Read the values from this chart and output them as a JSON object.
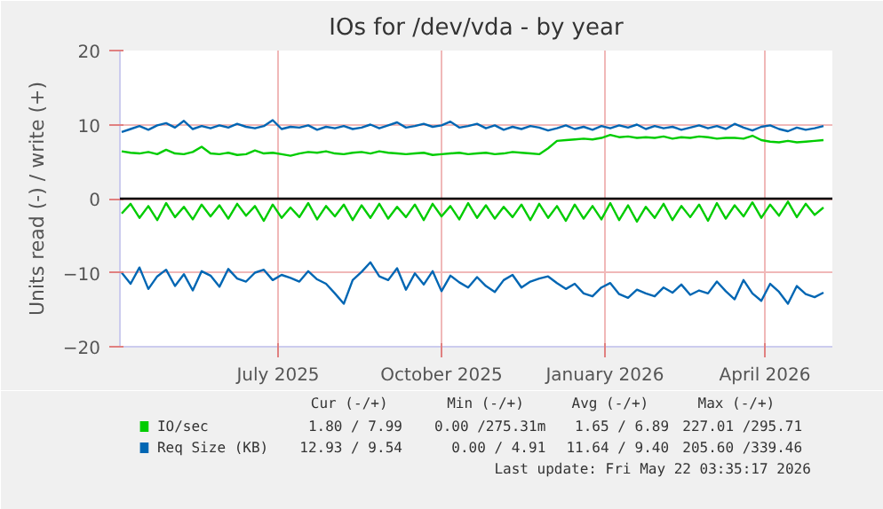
{
  "chart_data": {
    "type": "line",
    "title": "IOs for /dev/vda - by year",
    "ylabel": "Units read (-) / write (+)",
    "x": [
      "2025-04-19",
      "2025-04-24",
      "2025-04-29",
      "2025-05-04",
      "2025-05-09",
      "2025-05-14",
      "2025-05-19",
      "2025-05-24",
      "2025-05-29",
      "2025-06-03",
      "2025-06-08",
      "2025-06-13",
      "2025-06-18",
      "2025-06-23",
      "2025-06-28",
      "2025-07-03",
      "2025-07-08",
      "2025-07-13",
      "2025-07-18",
      "2025-07-23",
      "2025-07-28",
      "2025-08-02",
      "2025-08-07",
      "2025-08-12",
      "2025-08-17",
      "2025-08-22",
      "2025-08-27",
      "2025-09-01",
      "2025-09-06",
      "2025-09-11",
      "2025-09-16",
      "2025-09-21",
      "2025-09-26",
      "2025-10-01",
      "2025-10-06",
      "2025-10-11",
      "2025-10-16",
      "2025-10-21",
      "2025-10-26",
      "2025-10-31",
      "2025-11-05",
      "2025-11-10",
      "2025-11-15",
      "2025-11-20",
      "2025-11-25",
      "2025-11-30",
      "2025-12-05",
      "2025-12-10",
      "2025-12-15",
      "2025-12-20",
      "2025-12-25",
      "2025-12-30",
      "2026-01-04",
      "2026-01-09",
      "2026-01-14",
      "2026-01-19",
      "2026-01-24",
      "2026-01-29",
      "2026-02-03",
      "2026-02-08",
      "2026-02-13",
      "2026-02-18",
      "2026-02-23",
      "2026-02-28",
      "2026-03-05",
      "2026-03-10",
      "2026-03-15",
      "2026-03-20",
      "2026-03-25",
      "2026-03-30",
      "2026-04-04",
      "2026-04-09",
      "2026-04-14",
      "2026-04-19",
      "2026-04-24",
      "2026-04-29",
      "2026-05-04",
      "2026-05-09",
      "2026-05-14",
      "2026-05-19"
    ],
    "series": [
      {
        "name": "IO/sec",
        "color": "#00cc00",
        "values": [
          6.4,
          6.2,
          6.1,
          6.3,
          6.0,
          6.6,
          6.1,
          6.0,
          6.3,
          7.0,
          6.1,
          6.0,
          6.2,
          5.9,
          6.0,
          6.5,
          6.1,
          6.2,
          6.0,
          5.8,
          6.1,
          6.3,
          6.2,
          6.4,
          6.1,
          6.0,
          6.2,
          6.3,
          6.1,
          6.4,
          6.2,
          6.1,
          6.0,
          6.1,
          6.2,
          5.9,
          6.0,
          6.1,
          6.2,
          6.0,
          6.1,
          6.2,
          6.0,
          6.1,
          6.3,
          6.2,
          6.1,
          6.0,
          6.8,
          7.8,
          7.9,
          8.0,
          8.1,
          8.0,
          8.2,
          8.6,
          8.3,
          8.4,
          8.2,
          8.3,
          8.2,
          8.4,
          8.1,
          8.3,
          8.2,
          8.4,
          8.3,
          8.1,
          8.2,
          8.2,
          8.1,
          8.5,
          7.9,
          7.7,
          7.6,
          7.8,
          7.6,
          7.7,
          7.8,
          7.9
        ]
      },
      {
        "color": "#00cc00",
        "values": [
          -2.0,
          -0.7,
          -2.6,
          -1.0,
          -2.9,
          -0.6,
          -2.5,
          -1.1,
          -2.8,
          -0.8,
          -2.4,
          -0.9,
          -2.7,
          -0.7,
          -2.3,
          -1.0,
          -3.0,
          -0.8,
          -2.6,
          -1.2,
          -2.5,
          -0.6,
          -2.8,
          -1.0,
          -2.4,
          -0.8,
          -2.9,
          -0.9,
          -2.6,
          -0.7,
          -2.7,
          -1.1,
          -2.5,
          -0.8,
          -2.9,
          -0.7,
          -2.4,
          -1.0,
          -2.8,
          -0.6,
          -2.6,
          -0.9,
          -2.7,
          -1.1,
          -2.5,
          -0.8,
          -2.9,
          -0.7,
          -2.6,
          -1.0,
          -3.0,
          -0.8,
          -2.7,
          -1.0,
          -2.8,
          -0.6,
          -2.9,
          -0.9,
          -3.1,
          -1.1,
          -2.6,
          -0.7,
          -2.9,
          -1.0,
          -2.5,
          -0.8,
          -3.0,
          -0.6,
          -2.7,
          -0.9,
          -2.4,
          -0.5,
          -2.6,
          -0.8,
          -2.3,
          -0.4,
          -2.5,
          -0.7,
          -2.2,
          -1.2
        ]
      },
      {
        "name": "Req Size (KB)",
        "color": "#0066b3",
        "values": [
          9.0,
          9.4,
          9.8,
          9.3,
          9.9,
          10.2,
          9.6,
          10.5,
          9.4,
          9.8,
          9.5,
          9.9,
          9.6,
          10.1,
          9.7,
          9.5,
          9.8,
          10.6,
          9.4,
          9.7,
          9.6,
          9.9,
          9.3,
          9.7,
          9.5,
          9.8,
          9.4,
          9.6,
          10.0,
          9.5,
          9.9,
          10.3,
          9.6,
          9.8,
          10.1,
          9.7,
          9.9,
          10.4,
          9.6,
          9.8,
          10.1,
          9.5,
          9.9,
          9.3,
          9.7,
          9.4,
          9.8,
          9.6,
          9.2,
          9.5,
          9.9,
          9.4,
          9.7,
          9.3,
          9.8,
          9.5,
          9.9,
          9.6,
          10.0,
          9.4,
          9.8,
          9.5,
          9.7,
          9.3,
          9.6,
          9.9,
          9.5,
          9.8,
          9.4,
          10.1,
          9.6,
          9.2,
          9.7,
          9.9,
          9.4,
          9.1,
          9.6,
          9.3,
          9.5,
          9.8
        ]
      },
      {
        "color": "#0066b3",
        "values": [
          -10.0,
          -11.5,
          -9.3,
          -12.2,
          -10.5,
          -9.6,
          -11.8,
          -10.2,
          -12.4,
          -9.8,
          -10.4,
          -11.9,
          -9.5,
          -10.8,
          -11.2,
          -10.0,
          -9.6,
          -11.0,
          -10.3,
          -10.7,
          -11.2,
          -9.8,
          -10.9,
          -11.5,
          -12.8,
          -14.2,
          -11.0,
          -9.9,
          -8.6,
          -10.5,
          -11.0,
          -9.4,
          -12.3,
          -10.1,
          -11.6,
          -9.8,
          -12.5,
          -10.4,
          -11.3,
          -12.0,
          -10.6,
          -11.8,
          -12.6,
          -11.0,
          -10.3,
          -12.0,
          -11.2,
          -10.8,
          -10.5,
          -11.4,
          -12.2,
          -11.5,
          -12.8,
          -13.2,
          -12.0,
          -11.4,
          -12.9,
          -13.4,
          -12.3,
          -12.8,
          -13.2,
          -12.0,
          -12.7,
          -11.6,
          -13.0,
          -12.4,
          -12.8,
          -11.2,
          -12.5,
          -13.6,
          -11.0,
          -12.8,
          -13.8,
          -11.5,
          -12.6,
          -14.2,
          -11.8,
          -12.9,
          -13.3,
          -12.7
        ]
      }
    ],
    "xlim": [
      "2025-04-18",
      "2026-05-24"
    ],
    "xticks": [
      {
        "value": "2025-07-16",
        "label": "July 2025"
      },
      {
        "value": "2025-10-16",
        "label": "October 2025"
      },
      {
        "value": "2026-01-16",
        "label": "January 2026"
      },
      {
        "value": "2026-04-16",
        "label": "April 2026"
      }
    ],
    "ylim": [
      -20,
      20
    ],
    "yticks": [
      -20,
      -10,
      0,
      10,
      20
    ],
    "ref_lines": [
      {
        "axis": "y",
        "value": 0,
        "color": "#000000"
      }
    ],
    "grid": true,
    "legend": "bottom",
    "line_style": "solid",
    "annotations": [
      "Cur (-/+)",
      "Min (-/+)",
      "Avg (-/+)",
      "Max (-/+)",
      "1.80 / 7.99",
      "0.00 /275.31m",
      "1.65 / 6.89",
      "227.01 /295.71",
      "12.93 / 9.54",
      "0.00 / 4.91",
      "11.64 / 9.40",
      "205.60 /339.46",
      "Last update: Fri May 22 03:35:17 2026"
    ]
  }
}
